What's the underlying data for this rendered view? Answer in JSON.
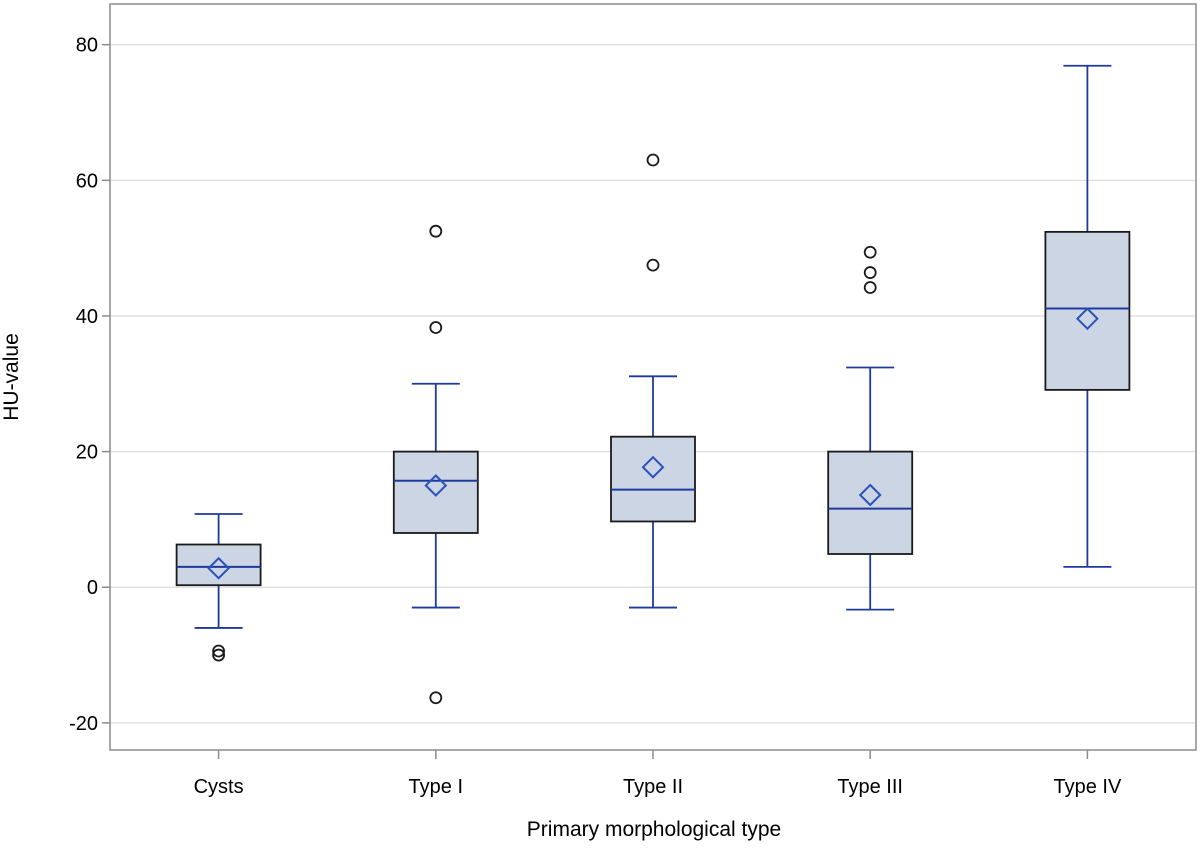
{
  "chart_data": {
    "type": "boxplot",
    "title": "",
    "xlabel": "Primary morphological type",
    "ylabel": "HU-value",
    "ylim": [
      -24,
      86
    ],
    "yticks": [
      -20,
      0,
      20,
      40,
      60,
      80
    ],
    "grid": true,
    "categories": [
      "Cysts",
      "Type I",
      "Type II",
      "Type III",
      "Type IV"
    ],
    "boxes": [
      {
        "category": "Cysts",
        "whisker_low": -6,
        "q1": 0.3,
        "median": 3,
        "q3": 6.3,
        "whisker_high": 10.8,
        "mean": 2.8,
        "outliers": [
          -9.4,
          -10
        ]
      },
      {
        "category": "Type I",
        "whisker_low": -3,
        "q1": 8,
        "median": 15.7,
        "q3": 20,
        "whisker_high": 30,
        "mean": 15,
        "outliers": [
          52.5,
          38.3,
          -16.3
        ]
      },
      {
        "category": "Type II",
        "whisker_low": -3,
        "q1": 9.7,
        "median": 14.4,
        "q3": 22.2,
        "whisker_high": 31.1,
        "mean": 17.7,
        "outliers": [
          63,
          47.5
        ]
      },
      {
        "category": "Type III",
        "whisker_low": -3.3,
        "q1": 4.9,
        "median": 11.6,
        "q3": 20,
        "whisker_high": 32.4,
        "mean": 13.6,
        "outliers": [
          49.4,
          46.4,
          44.2
        ]
      },
      {
        "category": "Type IV",
        "whisker_low": 3,
        "q1": 29.1,
        "median": 41.1,
        "q3": 52.4,
        "whisker_high": 76.9,
        "mean": 39.6,
        "outliers": []
      }
    ],
    "colors": {
      "box_fill": "#cbd5e4",
      "box_stroke": "#1a1a1a",
      "whisker": "#1f3a9e",
      "median": "#1f3a9e",
      "mean_marker": "#2a52b8",
      "outlier": "#1a1a1a",
      "grid": "#dcdcdc",
      "frame": "#8c8c8c"
    }
  }
}
